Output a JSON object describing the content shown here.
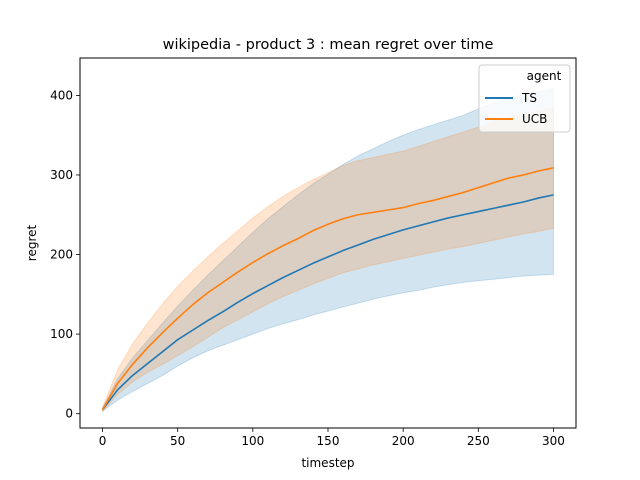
{
  "chart_data": {
    "type": "line",
    "title": "wikipedia - product 3 : mean regret over time",
    "xlabel": "timestep",
    "ylabel": "regret",
    "xlim": [
      -15,
      315
    ],
    "ylim": [
      -18,
      447
    ],
    "xticks": [
      0,
      50,
      100,
      150,
      200,
      250,
      300
    ],
    "yticks": [
      0,
      100,
      200,
      300,
      400
    ],
    "grid": false,
    "legend": {
      "title": "agent",
      "placement": "top-right"
    },
    "series": [
      {
        "name": "TS",
        "color": "#1f77b4",
        "x": [
          0,
          10,
          20,
          30,
          40,
          50,
          60,
          70,
          80,
          90,
          100,
          110,
          120,
          130,
          140,
          150,
          160,
          170,
          180,
          190,
          200,
          210,
          220,
          230,
          240,
          250,
          260,
          270,
          280,
          290,
          300
        ],
        "mean": [
          5,
          30,
          48,
          63,
          78,
          93,
          105,
          117,
          128,
          140,
          151,
          161,
          171,
          180,
          189,
          197,
          205,
          212,
          219,
          225,
          231,
          236,
          241,
          246,
          250,
          254,
          258,
          262,
          266,
          271,
          275
        ],
        "lower": [
          3,
          17,
          28,
          38,
          48,
          60,
          70,
          79,
          86,
          93,
          100,
          107,
          113,
          118,
          124,
          129,
          134,
          139,
          144,
          148,
          152,
          155,
          159,
          162,
          165,
          167,
          169,
          171,
          173,
          174,
          175
        ],
        "upper": [
          7,
          44,
          70,
          92,
          114,
          135,
          155,
          174,
          192,
          210,
          228,
          245,
          260,
          275,
          289,
          301,
          313,
          324,
          333,
          342,
          350,
          357,
          363,
          369,
          375,
          383,
          390,
          396,
          401,
          405,
          408
        ]
      },
      {
        "name": "UCB",
        "color": "#ff7f0e",
        "x": [
          0,
          10,
          20,
          30,
          40,
          50,
          60,
          70,
          80,
          90,
          100,
          110,
          120,
          130,
          140,
          150,
          160,
          170,
          180,
          190,
          200,
          210,
          220,
          230,
          240,
          250,
          260,
          270,
          280,
          290,
          300
        ],
        "mean": [
          5,
          38,
          62,
          83,
          102,
          120,
          137,
          152,
          165,
          178,
          190,
          201,
          211,
          220,
          230,
          238,
          245,
          250,
          253,
          256,
          259,
          264,
          268,
          273,
          278,
          284,
          290,
          296,
          300,
          305,
          309
        ],
        "lower": [
          3,
          24,
          40,
          52,
          62,
          73,
          84,
          96,
          108,
          118,
          128,
          138,
          147,
          155,
          163,
          170,
          177,
          182,
          187,
          191,
          195,
          199,
          203,
          207,
          210,
          214,
          218,
          222,
          226,
          229,
          233
        ],
        "upper": [
          8,
          55,
          88,
          114,
          138,
          160,
          179,
          197,
          214,
          230,
          246,
          260,
          273,
          284,
          294,
          303,
          312,
          318,
          322,
          326,
          330,
          336,
          342,
          348,
          354,
          360,
          366,
          372,
          376,
          380,
          384
        ]
      }
    ]
  }
}
